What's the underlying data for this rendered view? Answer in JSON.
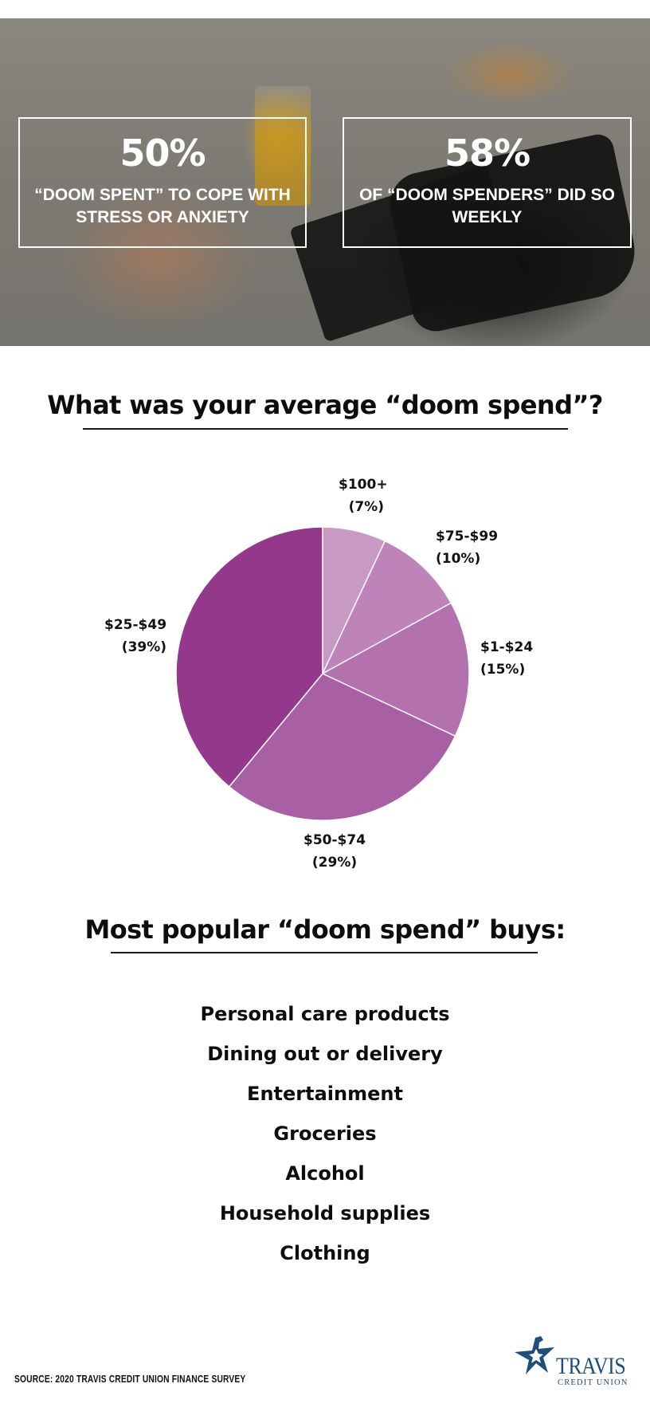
{
  "hero": {
    "stats": [
      {
        "value": "50%",
        "caption": "“DOOM SPENT” TO COPE WITH STRESS OR ANXIETY"
      },
      {
        "value": "58%",
        "caption": "OF “DOOM SPENDERS” DID SO WEEKLY"
      }
    ]
  },
  "chart_section": {
    "heading": "What was your average “doom spend”?"
  },
  "chart_data": {
    "type": "pie",
    "title": "What was your average “doom spend”?",
    "categories": [
      "$100+",
      "$75-$99",
      "$1-$24",
      "$50-$74",
      "$25-$49"
    ],
    "values": [
      7,
      10,
      15,
      29,
      39
    ],
    "labels": [
      "(7%)",
      "(10%)",
      "(15%)",
      "(29%)",
      "(39%)"
    ],
    "colors": [
      "#C899C4",
      "#BE83B8",
      "#B371AD",
      "#A95FA3",
      "#93388A"
    ],
    "start_angle": "top, clockwise",
    "legend": "none (direct labels)"
  },
  "buys_section": {
    "heading": "Most popular “doom spend” buys:",
    "items": [
      "Personal care products",
      "Dining out or delivery",
      "Entertainment",
      "Groceries",
      "Alcohol",
      "Household supplies",
      "Clothing"
    ]
  },
  "footer": {
    "source": "SOURCE: 2020 TRAVIS CREDIT UNION FINANCE SURVEY",
    "logo_name": "TRAVIS",
    "logo_sub": "CREDIT UNION",
    "logo_color": "#1D4F7C"
  }
}
